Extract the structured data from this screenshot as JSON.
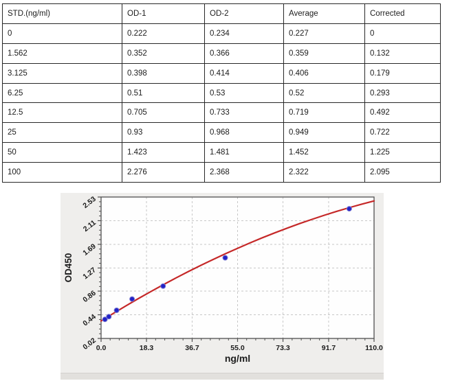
{
  "table": {
    "columns": [
      "STD.(ng/ml)",
      "OD-1",
      "OD-2",
      "Average",
      "Corrected"
    ],
    "rows": [
      [
        "0",
        "0.222",
        "0.234",
        "0.227",
        "0"
      ],
      [
        "1.562",
        "0.352",
        "0.366",
        "0.359",
        "0.132"
      ],
      [
        "3.125",
        "0.398",
        "0.414",
        "0.406",
        "0.179"
      ],
      [
        "6.25",
        "0.51",
        "0.53",
        "0.52",
        "0.293"
      ],
      [
        "12.5",
        "0.705",
        "0.733",
        "0.719",
        "0.492"
      ],
      [
        "25",
        "0.93",
        "0.968",
        "0.949",
        "0.722"
      ],
      [
        "50",
        "1.423",
        "1.481",
        "1.452",
        "1.225"
      ],
      [
        "100",
        "2.276",
        "2.368",
        "2.322",
        "2.095"
      ]
    ]
  },
  "chart_data": {
    "type": "scatter",
    "title": "",
    "xlabel": "ng/ml",
    "ylabel": "OD450",
    "xlim": [
      0,
      110
    ],
    "ylim": [
      0.02,
      2.53
    ],
    "grid": true,
    "legend": false,
    "x_ticks": {
      "values": [
        0,
        18.3,
        36.7,
        55.0,
        73.3,
        91.7,
        110.0
      ],
      "labels": [
        "0.0",
        "18.3",
        "36.7",
        "55.0",
        "73.3",
        "91.7",
        "110.0"
      ]
    },
    "y_ticks": {
      "values": [
        0.02,
        0.44,
        0.86,
        1.27,
        1.69,
        2.11,
        2.53
      ],
      "labels": [
        "0.02",
        "0.44",
        "0.86",
        "1.27",
        "1.69",
        "2.11",
        "2.53"
      ]
    },
    "x_minor_divisions": 5,
    "y_minor_divisions": 5,
    "points": [
      {
        "x": 1.562,
        "y": 0.359
      },
      {
        "x": 3.125,
        "y": 0.406
      },
      {
        "x": 6.25,
        "y": 0.52
      },
      {
        "x": 12.5,
        "y": 0.719
      },
      {
        "x": 25,
        "y": 0.949
      },
      {
        "x": 50,
        "y": 1.452
      },
      {
        "x": 100,
        "y": 2.322
      }
    ],
    "fit_curve": {
      "x": [
        0,
        5,
        10,
        15,
        20,
        25,
        30,
        35,
        40,
        45,
        50,
        55,
        60,
        65,
        70,
        75,
        80,
        85,
        90,
        95,
        100,
        105,
        110
      ],
      "y": [
        0.33,
        0.466,
        0.598,
        0.727,
        0.851,
        0.972,
        1.09,
        1.203,
        1.313,
        1.419,
        1.522,
        1.62,
        1.715,
        1.807,
        1.894,
        1.978,
        2.058,
        2.134,
        2.207,
        2.276,
        2.341,
        2.403,
        2.46
      ]
    },
    "colors": {
      "curve": "#c52828",
      "marker_fill": "#2323c6",
      "marker_edge": "#7d7dd2",
      "grid": "#c7c7c7",
      "frame": "#4f4f4f",
      "plot_bg": "#fefefe",
      "panel_bg": "#efeeec",
      "panel_strip": "#e2e0dd",
      "text": "#1c1c1c"
    }
  }
}
